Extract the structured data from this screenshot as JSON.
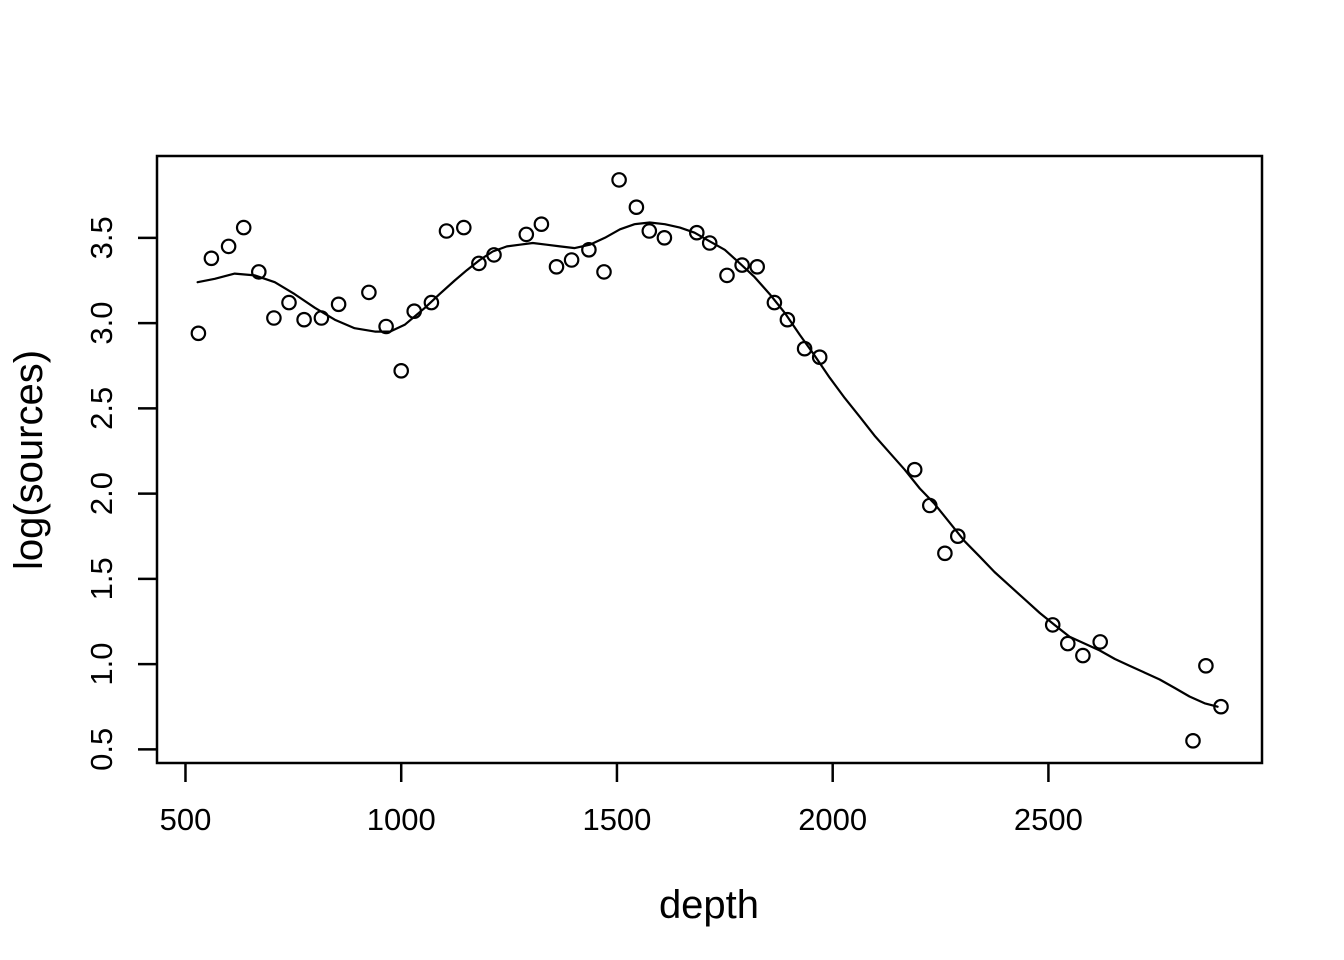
{
  "figure": {
    "background": "#ffffff",
    "foreground": "#000000",
    "xlabel": "depth",
    "ylabel": "log(sources)"
  },
  "chart_data": {
    "type": "scatter",
    "title": "",
    "xlabel": "depth",
    "ylabel": "log(sources)",
    "xlim": [
      434,
      2995
    ],
    "ylim": [
      0.42,
      3.98
    ],
    "grid": false,
    "legend": "none",
    "point_style": "open-circle",
    "x_ticks": [
      500,
      1000,
      1500,
      2000,
      2500
    ],
    "x_tick_labels": [
      "500",
      "1000",
      "1500",
      "2000",
      "2500"
    ],
    "y_ticks": [
      0.5,
      1.0,
      1.5,
      2.0,
      2.5,
      3.0,
      3.5
    ],
    "y_tick_labels": [
      "0.5",
      "1.0",
      "1.5",
      "2.0",
      "2.5",
      "3.0",
      "3.5"
    ],
    "points": [
      [
        530,
        2.94
      ],
      [
        560,
        3.38
      ],
      [
        600,
        3.45
      ],
      [
        635,
        3.56
      ],
      [
        670,
        3.3
      ],
      [
        705,
        3.03
      ],
      [
        740,
        3.12
      ],
      [
        775,
        3.02
      ],
      [
        815,
        3.03
      ],
      [
        855,
        3.11
      ],
      [
        925,
        3.18
      ],
      [
        965,
        2.98
      ],
      [
        1000,
        2.72
      ],
      [
        1030,
        3.07
      ],
      [
        1070,
        3.12
      ],
      [
        1105,
        3.54
      ],
      [
        1145,
        3.56
      ],
      [
        1180,
        3.35
      ],
      [
        1215,
        3.4
      ],
      [
        1290,
        3.52
      ],
      [
        1325,
        3.58
      ],
      [
        1360,
        3.33
      ],
      [
        1395,
        3.37
      ],
      [
        1435,
        3.43
      ],
      [
        1470,
        3.3
      ],
      [
        1505,
        3.84
      ],
      [
        1545,
        3.68
      ],
      [
        1575,
        3.54
      ],
      [
        1610,
        3.5
      ],
      [
        1685,
        3.53
      ],
      [
        1715,
        3.47
      ],
      [
        1755,
        3.28
      ],
      [
        1790,
        3.34
      ],
      [
        1825,
        3.33
      ],
      [
        1865,
        3.12
      ],
      [
        1895,
        3.02
      ],
      [
        1935,
        2.85
      ],
      [
        1970,
        2.8
      ],
      [
        2190,
        2.14
      ],
      [
        2225,
        1.93
      ],
      [
        2260,
        1.65
      ],
      [
        2290,
        1.75
      ],
      [
        2510,
        1.23
      ],
      [
        2545,
        1.12
      ],
      [
        2580,
        1.05
      ],
      [
        2620,
        1.13
      ],
      [
        2835,
        0.55
      ],
      [
        2865,
        0.99
      ],
      [
        2900,
        0.75
      ]
    ],
    "smooth_line": {
      "name": "loess-fit",
      "points": [
        [
          528,
          3.24
        ],
        [
          568,
          3.26
        ],
        [
          614,
          3.29
        ],
        [
          661,
          3.28
        ],
        [
          707,
          3.24
        ],
        [
          753,
          3.17
        ],
        [
          800,
          3.09
        ],
        [
          846,
          3.02
        ],
        [
          892,
          2.97
        ],
        [
          939,
          2.95
        ],
        [
          974,
          2.95
        ],
        [
          1008,
          2.99
        ],
        [
          1055,
          3.09
        ],
        [
          1089,
          3.17
        ],
        [
          1124,
          3.25
        ],
        [
          1152,
          3.31
        ],
        [
          1182,
          3.37
        ],
        [
          1212,
          3.42
        ],
        [
          1245,
          3.45
        ],
        [
          1275,
          3.46
        ],
        [
          1305,
          3.47
        ],
        [
          1337,
          3.46
        ],
        [
          1368,
          3.45
        ],
        [
          1402,
          3.44
        ],
        [
          1437,
          3.46
        ],
        [
          1472,
          3.5
        ],
        [
          1507,
          3.55
        ],
        [
          1541,
          3.58
        ],
        [
          1576,
          3.59
        ],
        [
          1611,
          3.58
        ],
        [
          1646,
          3.56
        ],
        [
          1680,
          3.53
        ],
        [
          1715,
          3.48
        ],
        [
          1750,
          3.43
        ],
        [
          1785,
          3.35
        ],
        [
          1819,
          3.27
        ],
        [
          1854,
          3.17
        ],
        [
          1889,
          3.06
        ],
        [
          1924,
          2.93
        ],
        [
          1958,
          2.81
        ],
        [
          1993,
          2.68
        ],
        [
          2028,
          2.56
        ],
        [
          2063,
          2.45
        ],
        [
          2097,
          2.34
        ],
        [
          2132,
          2.24
        ],
        [
          2167,
          2.14
        ],
        [
          2202,
          2.03
        ],
        [
          2236,
          1.94
        ],
        [
          2271,
          1.83
        ],
        [
          2306,
          1.72
        ],
        [
          2341,
          1.63
        ],
        [
          2375,
          1.54
        ],
        [
          2410,
          1.46
        ],
        [
          2445,
          1.38
        ],
        [
          2480,
          1.3
        ],
        [
          2514,
          1.23
        ],
        [
          2549,
          1.16
        ],
        [
          2584,
          1.12
        ],
        [
          2619,
          1.08
        ],
        [
          2654,
          1.03
        ],
        [
          2688,
          0.99
        ],
        [
          2723,
          0.95
        ],
        [
          2758,
          0.91
        ],
        [
          2793,
          0.86
        ],
        [
          2827,
          0.81
        ],
        [
          2862,
          0.77
        ],
        [
          2892,
          0.75
        ]
      ]
    }
  }
}
